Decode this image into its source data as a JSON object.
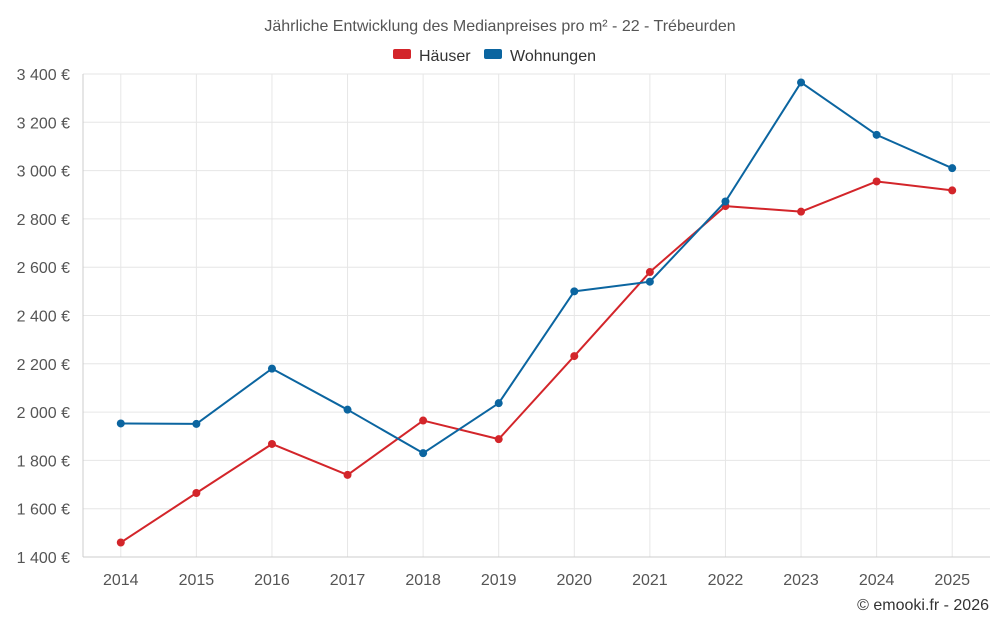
{
  "chart_data": {
    "type": "line",
    "title": "Jährliche Entwicklung des Medianpreises pro m² - 22 - Trébeurden",
    "categories": [
      "2014",
      "2015",
      "2016",
      "2017",
      "2018",
      "2019",
      "2020",
      "2021",
      "2022",
      "2023",
      "2024",
      "2025"
    ],
    "series": [
      {
        "name": "Häuser",
        "color": "#d3252a",
        "values": [
          1460,
          1665,
          1868,
          1740,
          1965,
          1888,
          2232,
          2580,
          2853,
          2830,
          2955,
          2918
        ]
      },
      {
        "name": "Wohnungen",
        "color": "#0b65a0",
        "values": [
          1953,
          1951,
          2180,
          2010,
          1830,
          2037,
          2500,
          2540,
          2872,
          3365,
          3148,
          3010
        ]
      }
    ],
    "ylim": [
      1400,
      3400
    ],
    "yticks": [
      1400,
      1600,
      1800,
      2000,
      2200,
      2400,
      2600,
      2800,
      3000,
      3200,
      3400
    ],
    "ytick_labels": [
      "1 400 €",
      "1 600 €",
      "1 800 €",
      "2 000 €",
      "2 200 €",
      "2 400 €",
      "2 600 €",
      "2 800 €",
      "3 000 €",
      "3 200 €",
      "3 400 €"
    ],
    "legend_position": "top-center",
    "grid": true,
    "xlabel": "",
    "ylabel": ""
  },
  "credit": "© emooki.fr - 2026"
}
